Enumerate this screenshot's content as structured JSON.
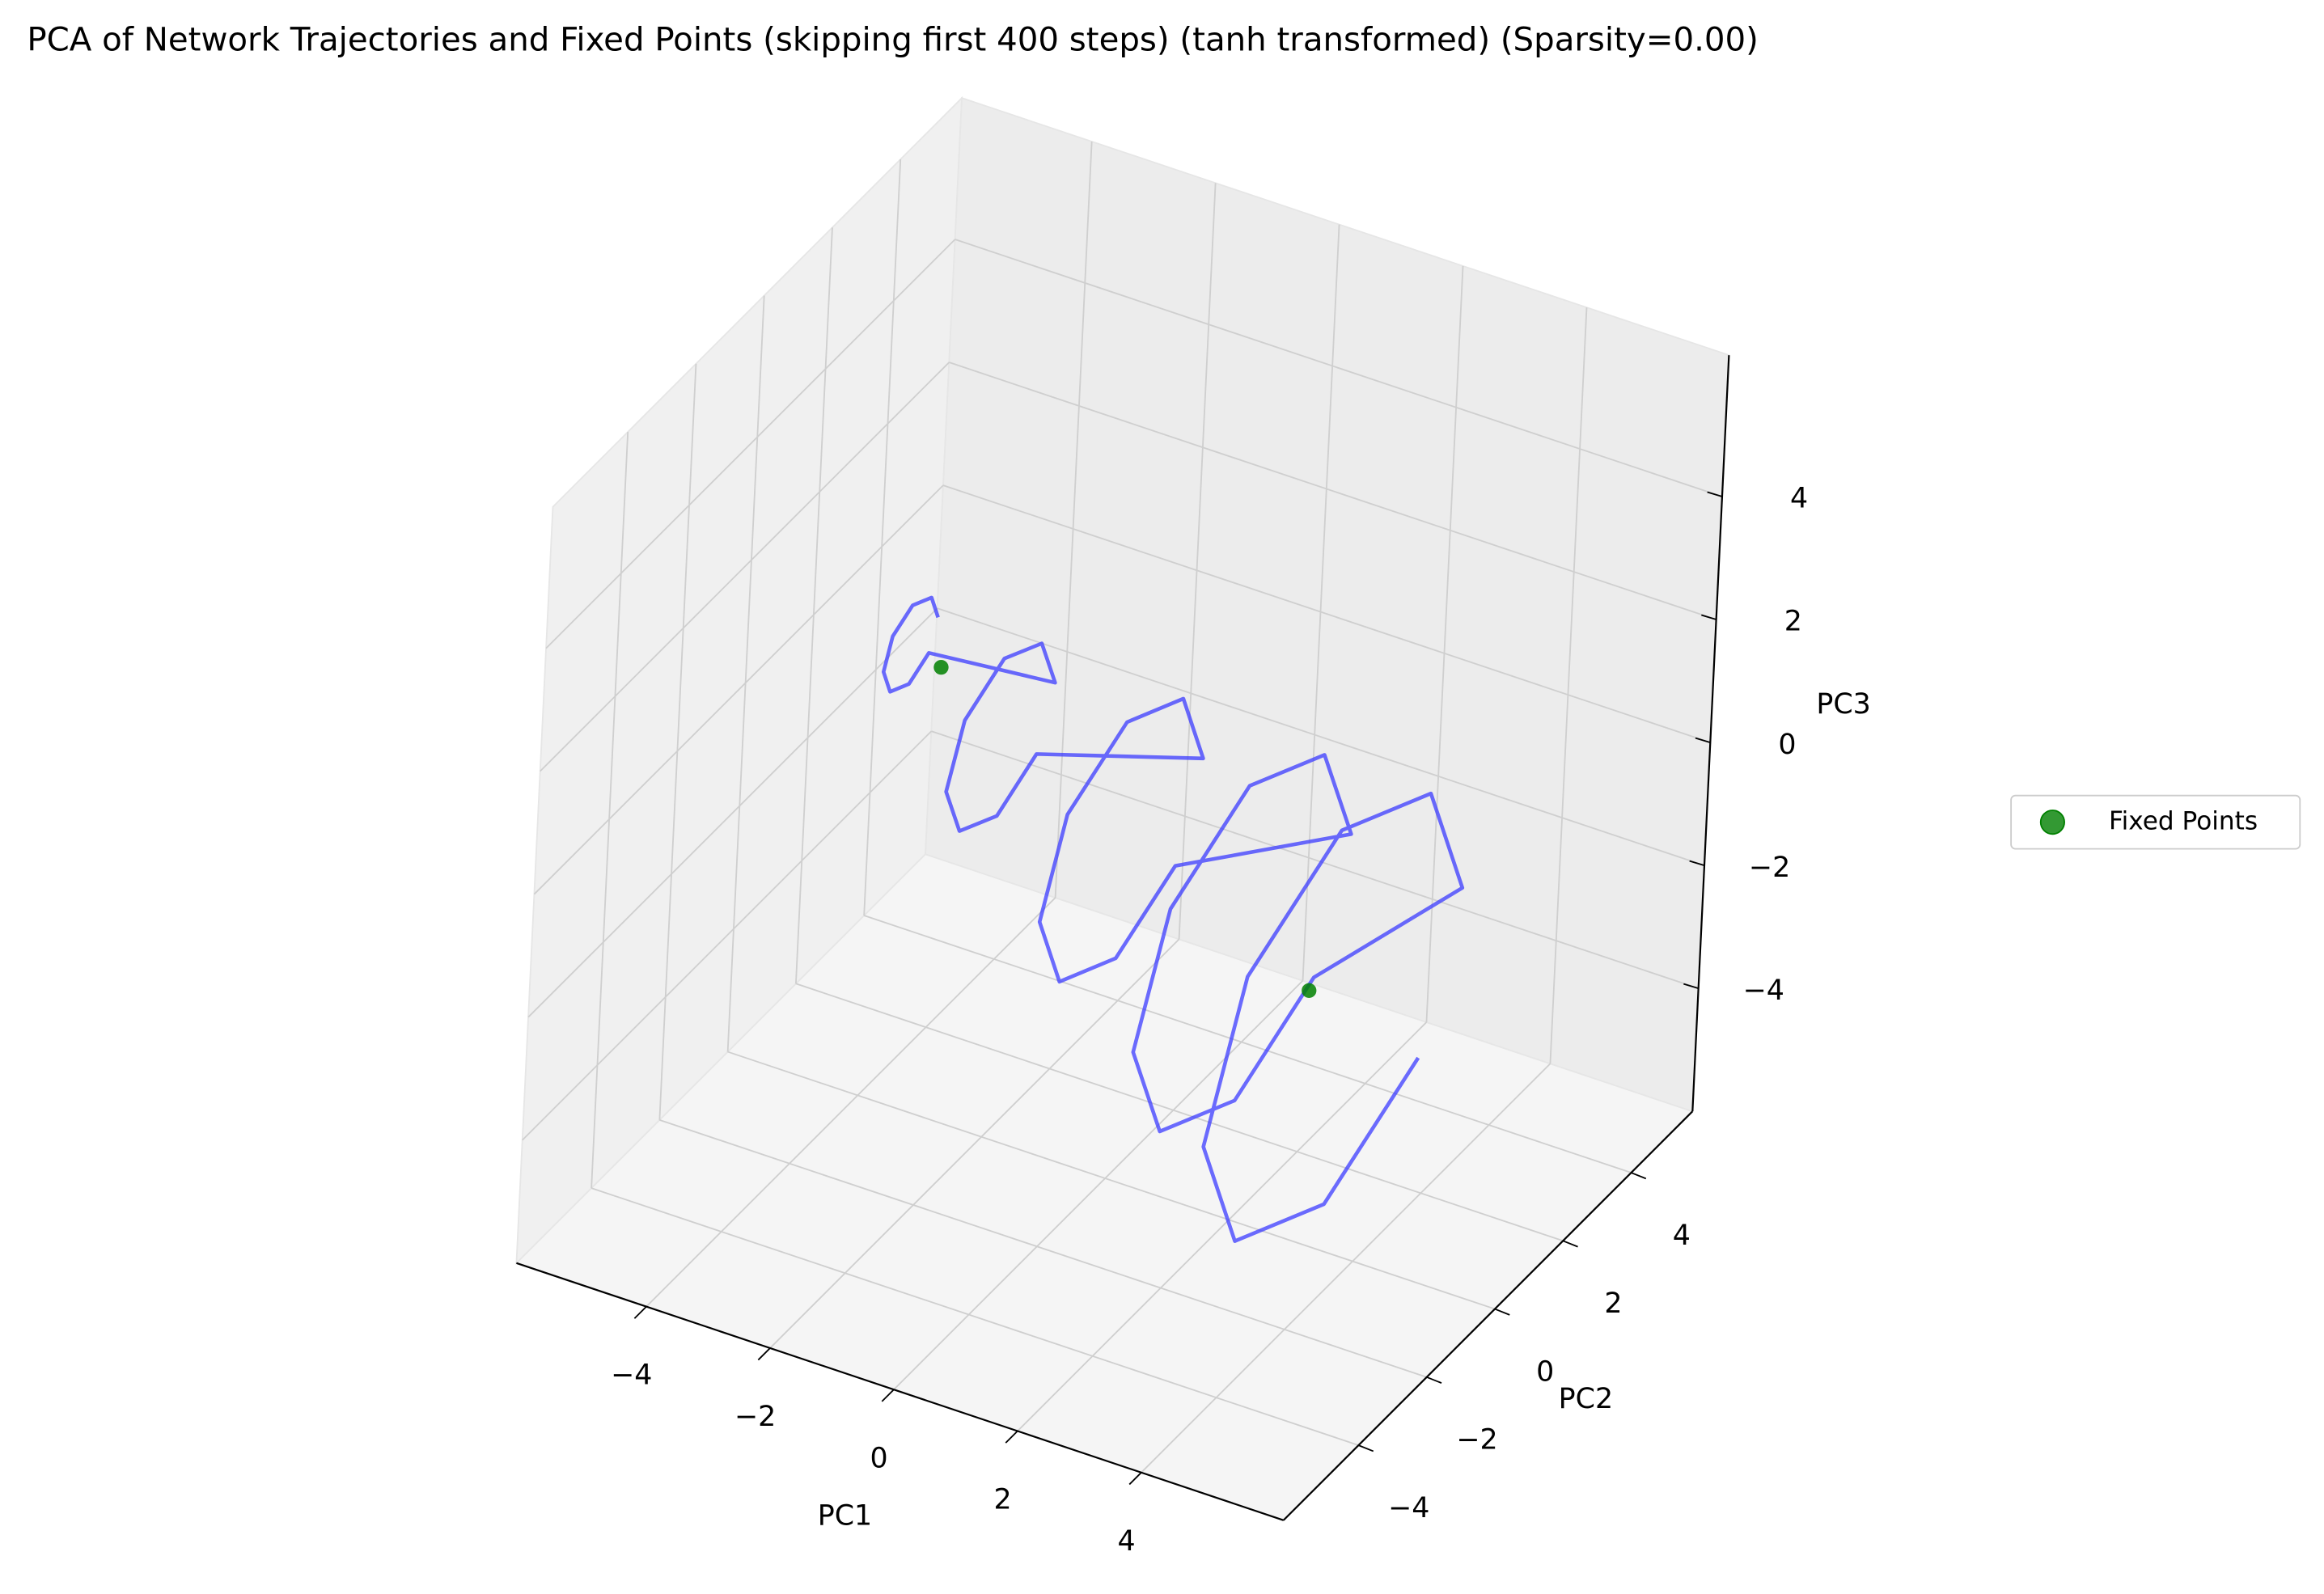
{
  "chart_data": {
    "type": "line3d",
    "title": "PCA of Network Trajectories and Fixed Points (skipping first 400 steps) (tanh transformed) (Sparsity=0.00)",
    "xlabel": "PC1",
    "ylabel": "PC2",
    "zlabel": "PC3",
    "xlim": [
      -6.1,
      6.3
    ],
    "ylim": [
      -6.2,
      5.8
    ],
    "zlim": [
      -6.0,
      6.3
    ],
    "xticks": [
      {
        "value": -4,
        "label": "−4"
      },
      {
        "value": -2,
        "label": "−2"
      },
      0,
      2,
      4
    ],
    "yticks": [
      {
        "value": -4,
        "label": "−4"
      },
      {
        "value": -2,
        "label": "−2"
      },
      0,
      2,
      4
    ],
    "zticks": [
      {
        "value": -4,
        "label": "−4"
      },
      {
        "value": -2,
        "label": "−2"
      },
      0,
      2,
      4
    ],
    "grid": true,
    "legend": "right",
    "series": [
      {
        "mode": "line",
        "color": "#3b3bff",
        "x": [
          -3.5,
          -3.5,
          -3.5,
          -3.5,
          -3.5,
          -3.5,
          -3.5,
          -3.5,
          -2,
          -2,
          -2,
          -2,
          -2,
          -2,
          -2,
          -2,
          0,
          0,
          0,
          0,
          0,
          0,
          0,
          0,
          2,
          2,
          2,
          2,
          2,
          2,
          2,
          2,
          3.5,
          3.5,
          3.5,
          3.5,
          3.5,
          3.5,
          3.5,
          3.5
        ],
        "y": [
          0.8,
          0.57,
          0,
          -0.57,
          -0.8,
          -0.57,
          0,
          0.57,
          1.6,
          1.13,
          0,
          -1.13,
          -1.6,
          -1.13,
          0,
          1.13,
          2.4,
          1.7,
          0,
          -1.7,
          -2.4,
          -1.7,
          0,
          1.7,
          3.2,
          2.26,
          0,
          -2.26,
          -3.2,
          -2.26,
          0,
          2.26,
          3.8,
          2.69,
          0,
          -2.69,
          -3.8,
          -2.69,
          0,
          2.69
        ],
        "z": [
          1.5,
          1.95,
          2.14,
          1.95,
          1.5,
          1.05,
          0.86,
          1.05,
          0.5,
          1.4,
          1.78,
          1.4,
          0.5,
          -0.4,
          -0.78,
          -0.4,
          -0.5,
          0.86,
          1.42,
          0.86,
          -0.5,
          -1.86,
          -2.42,
          -1.86,
          -1.5,
          0.31,
          1.06,
          0.31,
          -1.5,
          -3.31,
          -4.06,
          -3.31,
          -2.2,
          -0.05,
          0.84,
          -0.05,
          -2.2,
          -4.35,
          -5.24,
          -4.35
        ]
      },
      {
        "mode": "markers",
        "name": "Fixed Points",
        "color": "#008000",
        "x": [
          -3,
          3.1
        ],
        "y": [
          0,
          0
        ],
        "z": [
          1.3,
          -1.9
        ]
      }
    ]
  }
}
